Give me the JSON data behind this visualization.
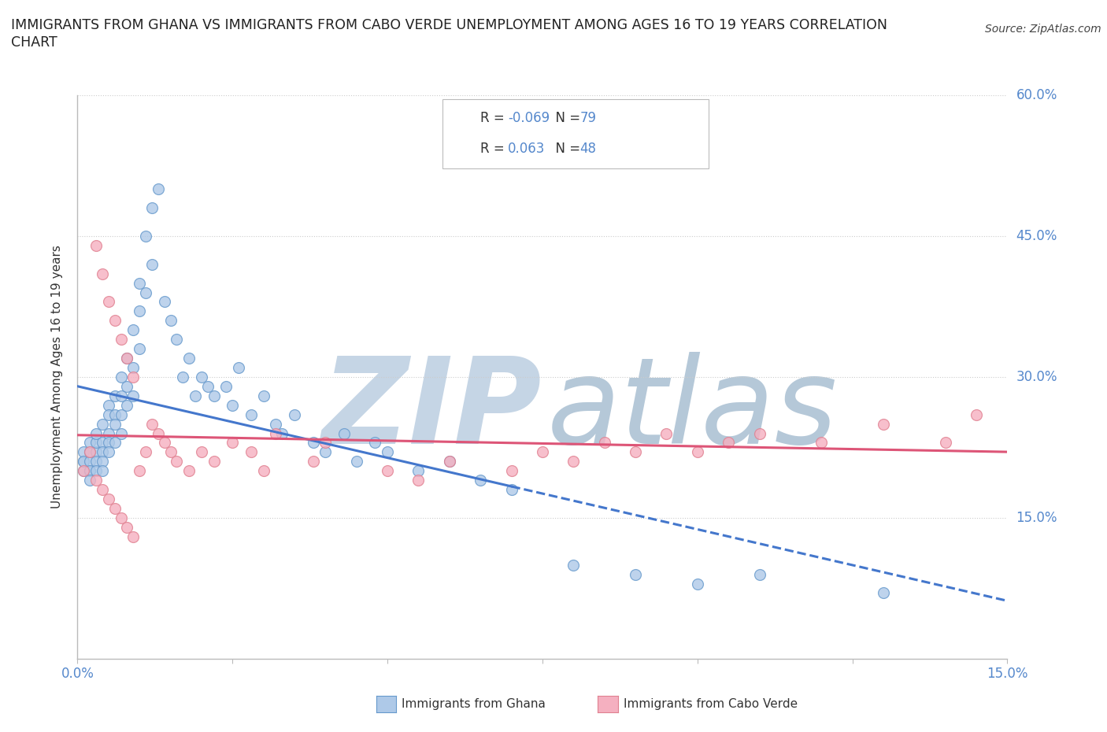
{
  "title_line1": "IMMIGRANTS FROM GHANA VS IMMIGRANTS FROM CABO VERDE UNEMPLOYMENT AMONG AGES 16 TO 19 YEARS CORRELATION",
  "title_line2": "CHART",
  "source": "Source: ZipAtlas.com",
  "ylabel": "Unemployment Among Ages 16 to 19 years",
  "xlim": [
    0.0,
    0.15
  ],
  "ylim": [
    0.0,
    0.6
  ],
  "ghana_fill": "#aec9e8",
  "ghana_edge": "#6699cc",
  "cabo_fill": "#f5b0c0",
  "cabo_edge": "#e08090",
  "trend_ghana": "#4477cc",
  "trend_cabo": "#dd5577",
  "watermark_zip_color": "#c5d5e5",
  "watermark_atlas_color": "#b5c8d8",
  "R_ghana": -0.069,
  "N_ghana": 79,
  "R_cabo": 0.063,
  "N_cabo": 48,
  "axis_color": "#5588cc",
  "label_color": "#333333",
  "ghana_x": [
    0.001,
    0.001,
    0.001,
    0.001,
    0.002,
    0.002,
    0.002,
    0.002,
    0.002,
    0.002,
    0.003,
    0.003,
    0.003,
    0.003,
    0.003,
    0.004,
    0.004,
    0.004,
    0.004,
    0.004,
    0.005,
    0.005,
    0.005,
    0.005,
    0.005,
    0.006,
    0.006,
    0.006,
    0.006,
    0.007,
    0.007,
    0.007,
    0.007,
    0.008,
    0.008,
    0.008,
    0.009,
    0.009,
    0.009,
    0.01,
    0.01,
    0.01,
    0.011,
    0.011,
    0.012,
    0.012,
    0.013,
    0.014,
    0.015,
    0.016,
    0.017,
    0.018,
    0.019,
    0.02,
    0.021,
    0.022,
    0.024,
    0.025,
    0.026,
    0.028,
    0.03,
    0.032,
    0.033,
    0.035,
    0.038,
    0.04,
    0.043,
    0.045,
    0.048,
    0.05,
    0.055,
    0.06,
    0.065,
    0.07,
    0.08,
    0.09,
    0.1,
    0.11,
    0.13
  ],
  "ghana_y": [
    0.2,
    0.21,
    0.22,
    0.21,
    0.2,
    0.21,
    0.22,
    0.23,
    0.2,
    0.19,
    0.22,
    0.23,
    0.24,
    0.21,
    0.2,
    0.25,
    0.23,
    0.22,
    0.21,
    0.2,
    0.27,
    0.26,
    0.24,
    0.23,
    0.22,
    0.28,
    0.26,
    0.25,
    0.23,
    0.3,
    0.28,
    0.26,
    0.24,
    0.32,
    0.29,
    0.27,
    0.35,
    0.31,
    0.28,
    0.4,
    0.37,
    0.33,
    0.45,
    0.39,
    0.48,
    0.42,
    0.5,
    0.38,
    0.36,
    0.34,
    0.3,
    0.32,
    0.28,
    0.3,
    0.29,
    0.28,
    0.29,
    0.27,
    0.31,
    0.26,
    0.28,
    0.25,
    0.24,
    0.26,
    0.23,
    0.22,
    0.24,
    0.21,
    0.23,
    0.22,
    0.2,
    0.21,
    0.19,
    0.18,
    0.1,
    0.09,
    0.08,
    0.09,
    0.07
  ],
  "cabo_x": [
    0.001,
    0.002,
    0.003,
    0.003,
    0.004,
    0.004,
    0.005,
    0.005,
    0.006,
    0.006,
    0.007,
    0.007,
    0.008,
    0.008,
    0.009,
    0.009,
    0.01,
    0.011,
    0.012,
    0.013,
    0.014,
    0.015,
    0.016,
    0.018,
    0.02,
    0.022,
    0.025,
    0.028,
    0.03,
    0.032,
    0.038,
    0.04,
    0.05,
    0.055,
    0.06,
    0.07,
    0.075,
    0.08,
    0.085,
    0.09,
    0.095,
    0.1,
    0.105,
    0.11,
    0.12,
    0.13,
    0.14,
    0.145
  ],
  "cabo_y": [
    0.2,
    0.22,
    0.44,
    0.19,
    0.41,
    0.18,
    0.38,
    0.17,
    0.36,
    0.16,
    0.34,
    0.15,
    0.32,
    0.14,
    0.3,
    0.13,
    0.2,
    0.22,
    0.25,
    0.24,
    0.23,
    0.22,
    0.21,
    0.2,
    0.22,
    0.21,
    0.23,
    0.22,
    0.2,
    0.24,
    0.21,
    0.23,
    0.2,
    0.19,
    0.21,
    0.2,
    0.22,
    0.21,
    0.23,
    0.22,
    0.24,
    0.22,
    0.23,
    0.24,
    0.23,
    0.25,
    0.23,
    0.26
  ]
}
